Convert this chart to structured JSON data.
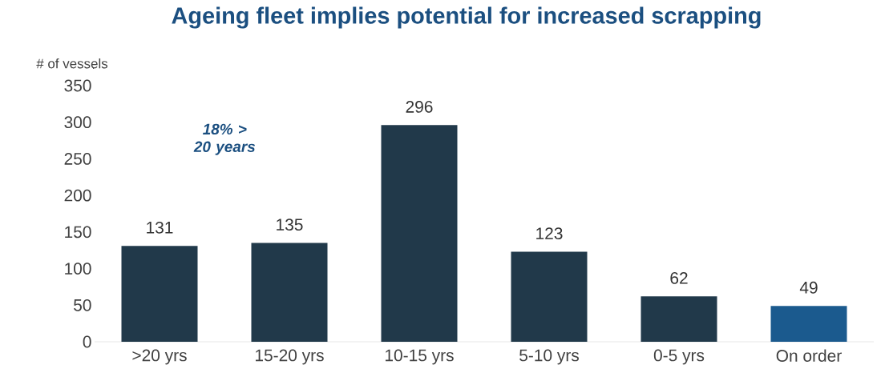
{
  "chart_data": {
    "type": "bar",
    "title": "Ageing fleet implies potential for increased scrapping",
    "ylabel": "# of vessels",
    "categories": [
      ">20 yrs",
      "15-20 yrs",
      "10-15 yrs",
      "5-10 yrs",
      "0-5 yrs",
      "On order"
    ],
    "values": [
      131,
      135,
      296,
      123,
      62,
      49
    ],
    "colors": [
      "#21394a",
      "#21394a",
      "#21394a",
      "#21394a",
      "#21394a",
      "#1b5a8e"
    ],
    "ylim": [
      0,
      350
    ],
    "yticks": [
      0,
      50,
      100,
      150,
      200,
      250,
      300,
      350
    ],
    "data_labels": true,
    "annotations": [
      "18% > 20 years"
    ]
  }
}
